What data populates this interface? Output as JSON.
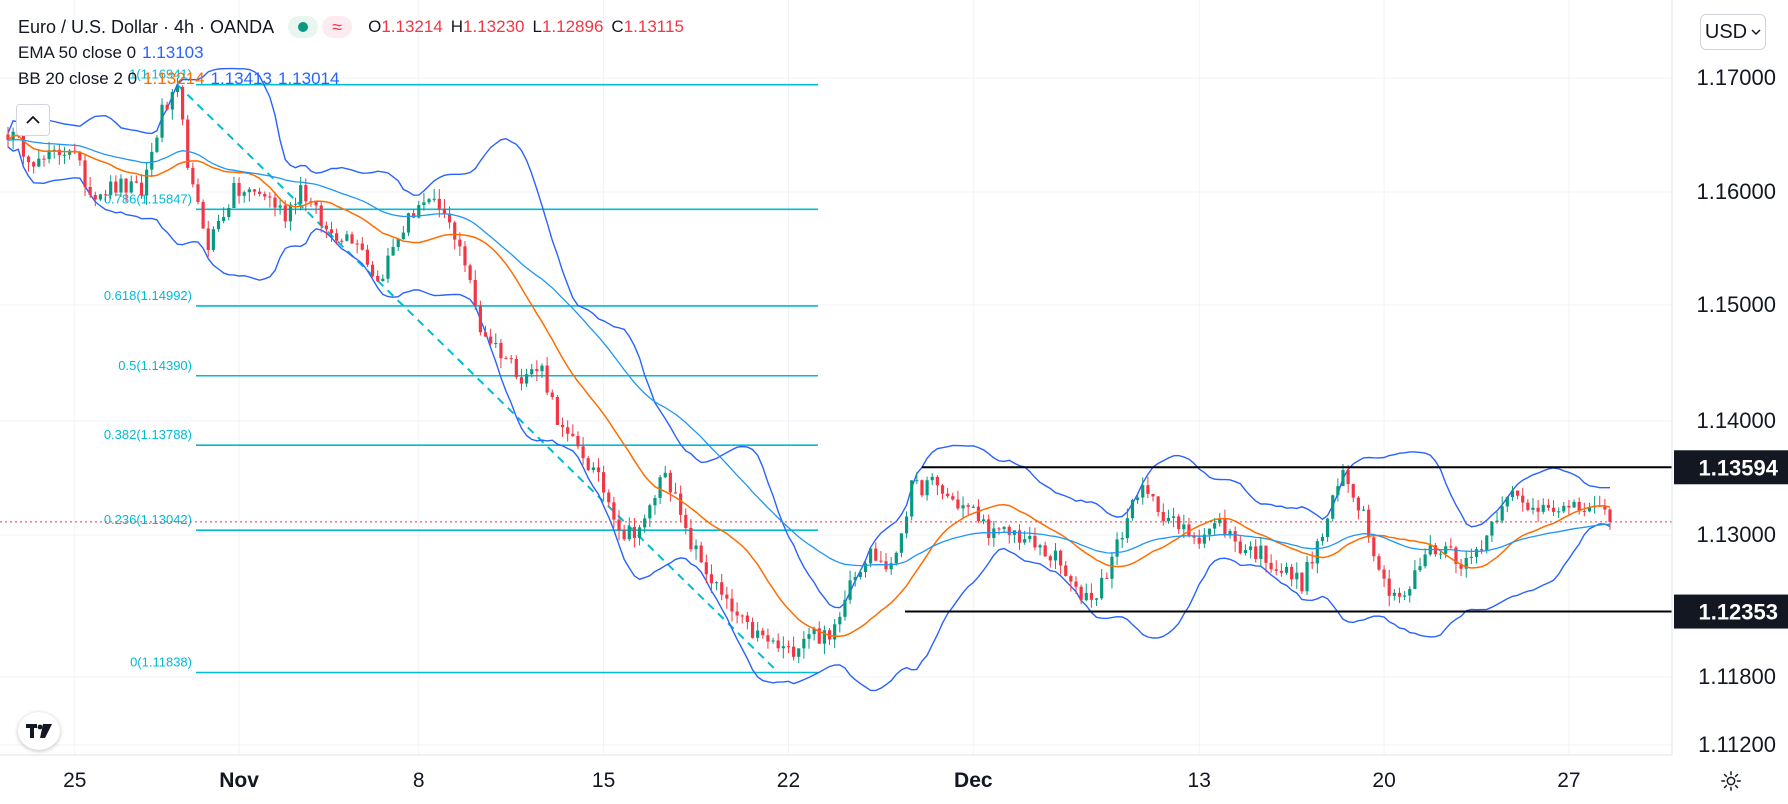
{
  "header": {
    "symbol": "Euro / U.S. Dollar",
    "interval": "4h",
    "broker": "OANDA",
    "title_full": "Euro / U.S. Dollar · 4h · OANDA",
    "ohlc": {
      "o_label": "O",
      "o_value": "1.13214",
      "h_label": "H",
      "h_value": "1.13230",
      "l_label": "L",
      "l_value": "1.12896",
      "c_label": "C",
      "c_value": "1.13115"
    }
  },
  "indicators": {
    "ema": {
      "label": "EMA 50 close 0",
      "value": "1.13103"
    },
    "bb": {
      "label": "BB 20 close 2 0",
      "basis": "1.13214",
      "upper": "1.13413",
      "lower": "1.13014"
    }
  },
  "currency_button": {
    "label": "USD"
  },
  "colors": {
    "up": "#089981",
    "down": "#f23645",
    "ema": "#2196f3",
    "bb_basis": "#ff6d00",
    "bb_bands": "#2962ff",
    "fib": "#00bcd4",
    "grid": "#f0f3fa",
    "axis_text": "#131722",
    "level_line": "#000000",
    "current_price": "#f23645"
  },
  "chart_data": {
    "type": "candlestick",
    "title": "Euro / U.S. Dollar · 4h · OANDA",
    "y_axis": {
      "ticks": [
        "1.17000",
        "1.16000",
        "1.15000",
        "1.14000",
        "1.13000",
        "1.11800",
        "1.11200"
      ],
      "tick_values": [
        1.17,
        1.16,
        1.15,
        1.14,
        1.13,
        1.118,
        1.112
      ]
    },
    "x_axis": {
      "ticks": [
        "25",
        "Nov",
        "8",
        "15",
        "22",
        "Dec",
        "13",
        "20",
        "27"
      ],
      "bold": [
        false,
        true,
        false,
        false,
        false,
        true,
        false,
        false,
        false
      ]
    },
    "price_labels": [
      {
        "label": "1.13594",
        "value": 1.13594
      },
      {
        "label": "1.12353",
        "value": 1.12353
      }
    ],
    "range_levels": [
      {
        "name": "resistance",
        "value": 1.13594
      },
      {
        "name": "support",
        "value": 1.12353
      }
    ],
    "current_price": 1.13115,
    "fibonacci": [
      {
        "label": "1(1.16941)",
        "value": 1.16941
      },
      {
        "label": "0.786(1.15847)",
        "value": 1.15847
      },
      {
        "label": "0.618(1.14992)",
        "value": 1.14992
      },
      {
        "label": "0.5(1.14390)",
        "value": 1.1439
      },
      {
        "label": "0.382(1.13788)",
        "value": 1.13788
      },
      {
        "label": "0.236(1.13042)",
        "value": 1.13042
      },
      {
        "label": "0(1.11838)",
        "value": 1.11838
      }
    ],
    "close_path": [
      {
        "i": 0,
        "p": 1.1652
      },
      {
        "i": 6,
        "p": 1.1625
      },
      {
        "i": 12,
        "p": 1.164
      },
      {
        "i": 16,
        "p": 1.16
      },
      {
        "i": 22,
        "p": 1.1605
      },
      {
        "i": 26,
        "p": 1.16
      },
      {
        "i": 30,
        "p": 1.167
      },
      {
        "i": 33,
        "p": 1.1685
      },
      {
        "i": 36,
        "p": 1.16
      },
      {
        "i": 39,
        "p": 1.1555
      },
      {
        "i": 44,
        "p": 1.16
      },
      {
        "i": 50,
        "p": 1.1598
      },
      {
        "i": 54,
        "p": 1.158
      },
      {
        "i": 57,
        "p": 1.1605
      },
      {
        "i": 62,
        "p": 1.1565
      },
      {
        "i": 68,
        "p": 1.156
      },
      {
        "i": 72,
        "p": 1.152
      },
      {
        "i": 76,
        "p": 1.156
      },
      {
        "i": 80,
        "p": 1.159
      },
      {
        "i": 84,
        "p": 1.1585
      },
      {
        "i": 88,
        "p": 1.1555
      },
      {
        "i": 92,
        "p": 1.148
      },
      {
        "i": 96,
        "p": 1.146
      },
      {
        "i": 100,
        "p": 1.144
      },
      {
        "i": 104,
        "p": 1.1445
      },
      {
        "i": 108,
        "p": 1.139
      },
      {
        "i": 112,
        "p": 1.137
      },
      {
        "i": 116,
        "p": 1.134
      },
      {
        "i": 120,
        "p": 1.13
      },
      {
        "i": 124,
        "p": 1.131
      },
      {
        "i": 128,
        "p": 1.136
      },
      {
        "i": 132,
        "p": 1.13
      },
      {
        "i": 136,
        "p": 1.127
      },
      {
        "i": 140,
        "p": 1.124
      },
      {
        "i": 144,
        "p": 1.122
      },
      {
        "i": 148,
        "p": 1.121
      },
      {
        "i": 152,
        "p": 1.12
      },
      {
        "i": 156,
        "p": 1.122
      },
      {
        "i": 160,
        "p": 1.121
      },
      {
        "i": 164,
        "p": 1.1265
      },
      {
        "i": 168,
        "p": 1.1285
      },
      {
        "i": 172,
        "p": 1.127
      },
      {
        "i": 176,
        "p": 1.134
      },
      {
        "i": 180,
        "p": 1.1345
      },
      {
        "i": 184,
        "p": 1.133
      },
      {
        "i": 188,
        "p": 1.132
      },
      {
        "i": 192,
        "p": 1.13
      },
      {
        "i": 196,
        "p": 1.1302
      },
      {
        "i": 200,
        "p": 1.129
      },
      {
        "i": 204,
        "p": 1.128
      },
      {
        "i": 208,
        "p": 1.125
      },
      {
        "i": 212,
        "p": 1.125
      },
      {
        "i": 216,
        "p": 1.129
      },
      {
        "i": 220,
        "p": 1.134
      },
      {
        "i": 224,
        "p": 1.1325
      },
      {
        "i": 228,
        "p": 1.1305
      },
      {
        "i": 232,
        "p": 1.13
      },
      {
        "i": 236,
        "p": 1.131
      },
      {
        "i": 240,
        "p": 1.129
      },
      {
        "i": 244,
        "p": 1.1285
      },
      {
        "i": 248,
        "p": 1.127
      },
      {
        "i": 252,
        "p": 1.126
      },
      {
        "i": 256,
        "p": 1.13
      },
      {
        "i": 260,
        "p": 1.1355
      },
      {
        "i": 264,
        "p": 1.132
      },
      {
        "i": 268,
        "p": 1.126
      },
      {
        "i": 272,
        "p": 1.1245
      },
      {
        "i": 276,
        "p": 1.1285
      },
      {
        "i": 280,
        "p": 1.129
      },
      {
        "i": 284,
        "p": 1.1275
      },
      {
        "i": 288,
        "p": 1.13
      },
      {
        "i": 292,
        "p": 1.134
      },
      {
        "i": 296,
        "p": 1.132
      },
      {
        "i": 300,
        "p": 1.133
      },
      {
        "i": 304,
        "p": 1.132
      },
      {
        "i": 308,
        "p": 1.1325
      },
      {
        "i": 312,
        "p": 1.1311
      }
    ],
    "candle_count": 313
  }
}
